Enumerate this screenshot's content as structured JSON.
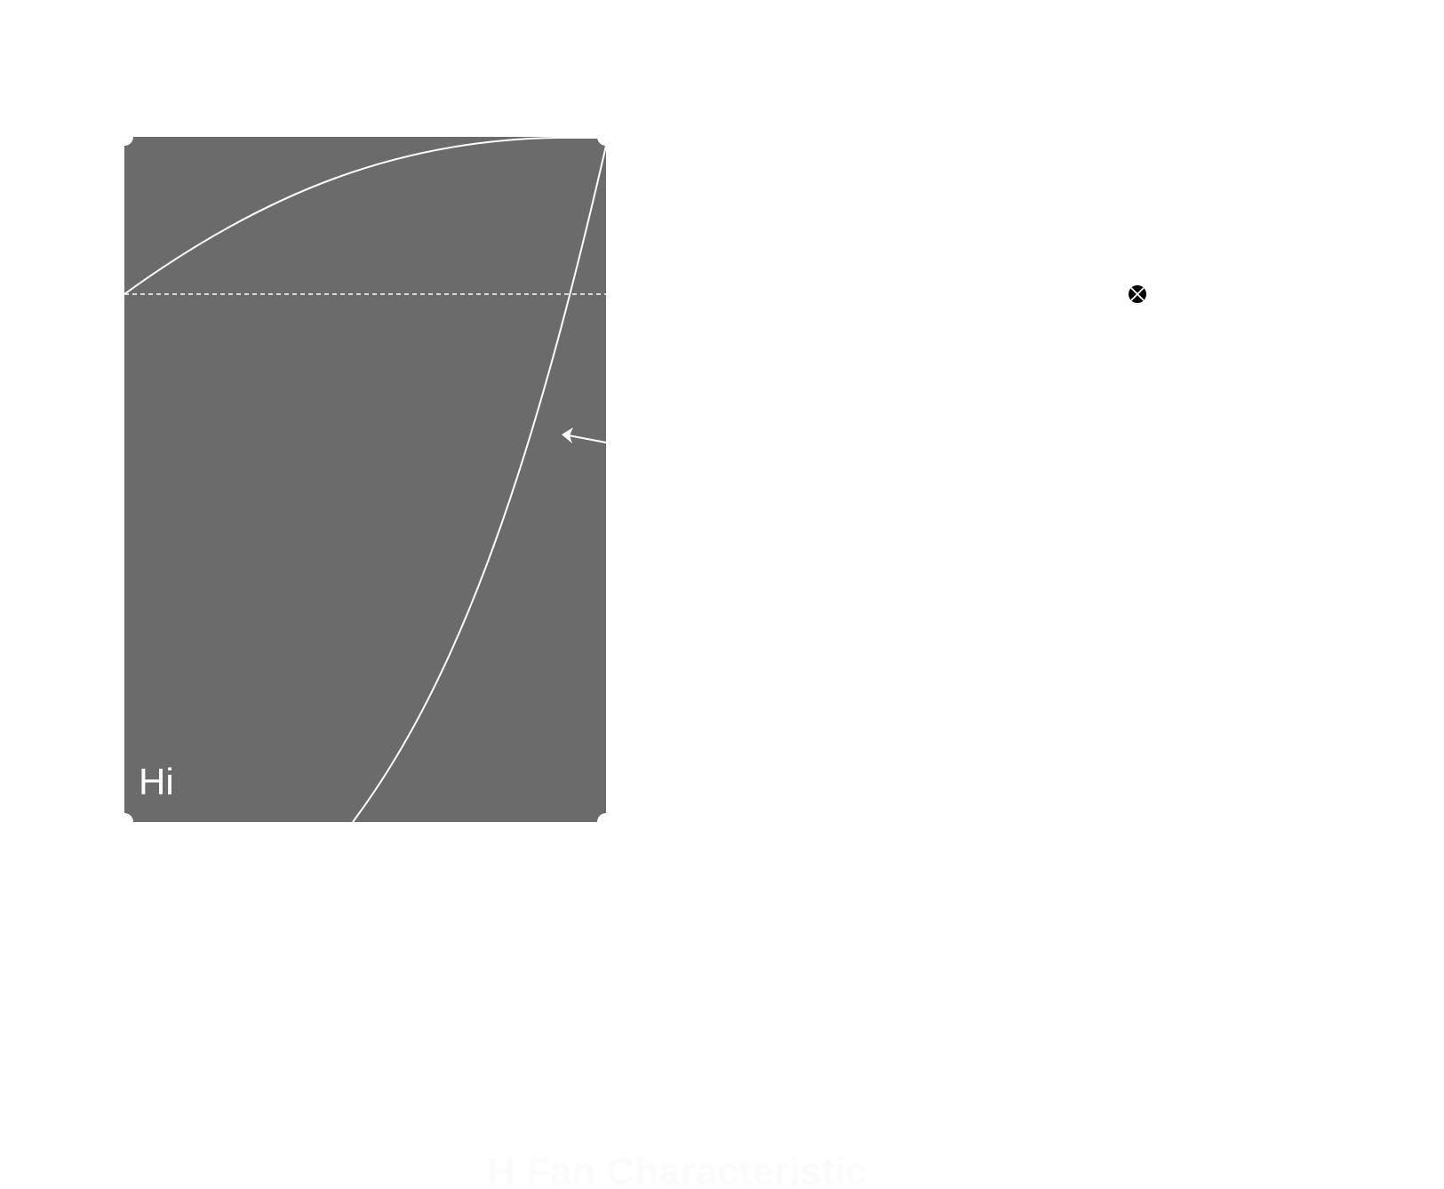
{
  "diagram": {
    "panel_label": "Hi",
    "caption": "H Fan Characteristic",
    "colors": {
      "panel_fill": "#6b6b6b",
      "curve_stroke": "#ffffff",
      "marker_fill": "#000000",
      "caption_fill": "#fbfbfb",
      "background": "#ffffff"
    },
    "icons": {
      "operating_point": "crossed-circle-icon",
      "annotation_arrow": "arrow-left-icon"
    }
  }
}
